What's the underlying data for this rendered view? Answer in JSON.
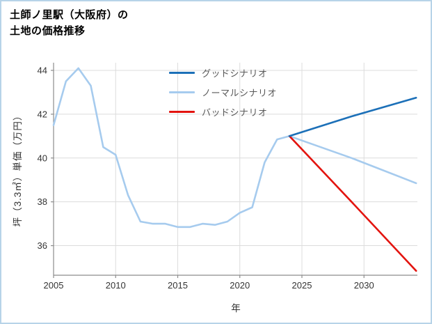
{
  "title": {
    "line1": "土師ノ里駅（大阪府）の",
    "line2": "土地の価格推移"
  },
  "colors": {
    "frame_border": "#b7d3e8",
    "background": "#ffffff",
    "grid": "#dcdcdc",
    "axis": "#8c8c8c",
    "tick_text": "#333333",
    "legend_text": "#595959",
    "title_text": "#000000"
  },
  "chart_data": {
    "type": "line",
    "title": "土師ノ里駅（大阪府）の土地の価格推移",
    "xlabel": "年",
    "ylabel": "坪（3.3㎡）単価（万円）",
    "xlim": [
      2005,
      2034.3
    ],
    "ylim": [
      34.65,
      44.35
    ],
    "x_ticks": [
      2005,
      2010,
      2015,
      2020,
      2025,
      2030
    ],
    "y_ticks": [
      36,
      38,
      40,
      42,
      44
    ],
    "grid": true,
    "legend_position": "top-center",
    "series": [
      {
        "key": "good-scenario",
        "name": "グッドシナリオ",
        "color": "#1c70b8",
        "x": [
          2024,
          2029,
          2034.2
        ],
        "values": [
          41.0,
          41.9,
          42.75
        ]
      },
      {
        "key": "normal-scenario",
        "name": "ノーマルシナリオ",
        "color": "#a6cbee",
        "x": [
          2005,
          2006,
          2007,
          2008,
          2009,
          2010,
          2011,
          2012,
          2013,
          2014,
          2015,
          2016,
          2017,
          2018,
          2019,
          2020,
          2021,
          2022,
          2023,
          2024,
          2029,
          2034.2
        ],
        "values": [
          41.5,
          43.5,
          44.1,
          43.3,
          40.5,
          40.15,
          38.3,
          37.1,
          37.0,
          37.0,
          36.85,
          36.85,
          37.0,
          36.95,
          37.1,
          37.5,
          37.75,
          39.8,
          40.85,
          41.0,
          40.0,
          38.85
        ]
      },
      {
        "key": "bad-scenario",
        "name": "バッドシナリオ",
        "color": "#e3140f",
        "x": [
          2024,
          2029,
          2034.2
        ],
        "values": [
          41.0,
          38.0,
          34.85
        ]
      }
    ]
  }
}
